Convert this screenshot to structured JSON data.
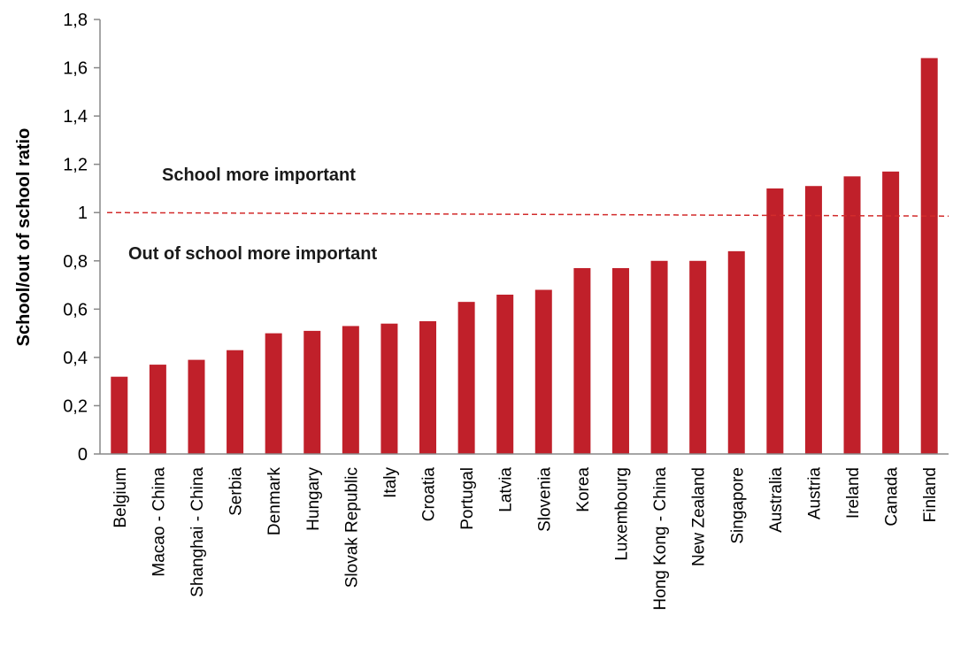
{
  "chart_data": {
    "type": "bar",
    "ylabel": "School/out of school ratio",
    "ylim": [
      0,
      1.8
    ],
    "yticks": [
      0,
      0.2,
      0.4,
      0.6,
      0.8,
      1,
      1.2,
      1.4,
      1.6,
      1.8
    ],
    "ytick_labels": [
      "0",
      "0,2",
      "0,4",
      "0,6",
      "0,8",
      "1",
      "1,2",
      "1,4",
      "1,6",
      "1,8"
    ],
    "categories": [
      "Belgium",
      "Macao - China",
      "Shanghai - China",
      "Serbia",
      "Denmark",
      "Hungary",
      "Slovak Republic",
      "Italy",
      "Croatia",
      "Portugal",
      "Latvia",
      "Slovenia",
      "Korea",
      "Luxembourg",
      "Hong Kong - China",
      "New Zealand",
      "Singapore",
      "Australia",
      "Austria",
      "Ireland",
      "Canada",
      "Finland"
    ],
    "values": [
      0.32,
      0.37,
      0.39,
      0.43,
      0.5,
      0.51,
      0.53,
      0.54,
      0.55,
      0.63,
      0.66,
      0.68,
      0.77,
      0.77,
      0.8,
      0.8,
      0.84,
      1.1,
      1.11,
      1.15,
      1.17,
      1.64
    ],
    "reference_line": {
      "value": 1,
      "style": "dashed"
    },
    "annotations": {
      "above": "School more important",
      "below": "Out of school more important"
    },
    "grid": false,
    "legend": "none",
    "colors": {
      "bar": "#c0202a",
      "reference_line": "#d22b2b"
    }
  }
}
